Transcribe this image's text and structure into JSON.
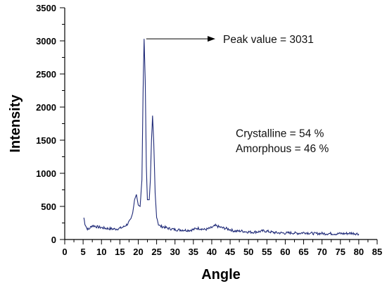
{
  "chart_data": {
    "type": "line",
    "title": "",
    "xlabel": "Angle",
    "ylabel": "Intensity",
    "xlim": [
      0,
      85
    ],
    "ylim": [
      0,
      3500
    ],
    "x_ticks": [
      0,
      5,
      10,
      15,
      20,
      25,
      30,
      35,
      40,
      45,
      50,
      55,
      60,
      65,
      70,
      75,
      80,
      85
    ],
    "y_ticks": [
      0,
      500,
      1000,
      1500,
      2000,
      2500,
      3000,
      3500
    ],
    "grid": false,
    "line_color": "#1f2a78",
    "series": [
      {
        "name": "",
        "points": [
          [
            5.2,
            330
          ],
          [
            5.5,
            240
          ],
          [
            6.0,
            170
          ],
          [
            6.5,
            150
          ],
          [
            7.0,
            185
          ],
          [
            7.5,
            210
          ],
          [
            8.0,
            205
          ],
          [
            9.0,
            190
          ],
          [
            10.0,
            180
          ],
          [
            11.0,
            170
          ],
          [
            12.0,
            165
          ],
          [
            13.0,
            160
          ],
          [
            14.0,
            158
          ],
          [
            15.0,
            170
          ],
          [
            16.0,
            190
          ],
          [
            17.0,
            230
          ],
          [
            18.0,
            300
          ],
          [
            18.5,
            400
          ],
          [
            19.0,
            600
          ],
          [
            19.5,
            680
          ],
          [
            20.0,
            520
          ],
          [
            20.5,
            500
          ],
          [
            21.0,
            900
          ],
          [
            21.3,
            2200
          ],
          [
            21.6,
            3031
          ],
          [
            21.9,
            2400
          ],
          [
            22.2,
            1100
          ],
          [
            22.5,
            600
          ],
          [
            23.0,
            600
          ],
          [
            23.3,
            900
          ],
          [
            23.6,
            1500
          ],
          [
            23.9,
            1870
          ],
          [
            24.2,
            1500
          ],
          [
            24.6,
            700
          ],
          [
            25.0,
            350
          ],
          [
            25.5,
            230
          ],
          [
            26.0,
            200
          ],
          [
            27.0,
            190
          ],
          [
            28.0,
            170
          ],
          [
            29.0,
            160
          ],
          [
            30.0,
            150
          ],
          [
            31.0,
            145
          ],
          [
            32.0,
            145
          ],
          [
            33.0,
            140
          ],
          [
            34.0,
            140
          ],
          [
            35.0,
            150
          ],
          [
            36.0,
            170
          ],
          [
            37.0,
            165
          ],
          [
            38.0,
            150
          ],
          [
            39.0,
            160
          ],
          [
            40.0,
            180
          ],
          [
            41.0,
            210
          ],
          [
            42.0,
            190
          ],
          [
            43.0,
            175
          ],
          [
            44.0,
            165
          ],
          [
            45.0,
            150
          ],
          [
            46.0,
            130
          ],
          [
            47.0,
            125
          ],
          [
            48.0,
            130
          ],
          [
            49.0,
            120
          ],
          [
            50.0,
            115
          ],
          [
            51.0,
            110
          ],
          [
            52.0,
            115
          ],
          [
            53.0,
            120
          ],
          [
            54.0,
            130
          ],
          [
            55.0,
            125
          ],
          [
            56.0,
            115
          ],
          [
            57.0,
            105
          ],
          [
            58.0,
            100
          ],
          [
            59.0,
            100
          ],
          [
            60.0,
            95
          ],
          [
            61.0,
            100
          ],
          [
            62.0,
            100
          ],
          [
            63.0,
            95
          ],
          [
            64.0,
            95
          ],
          [
            65.0,
            105
          ],
          [
            66.0,
            100
          ],
          [
            67.0,
            95
          ],
          [
            68.0,
            90
          ],
          [
            69.0,
            90
          ],
          [
            70.0,
            92
          ],
          [
            71.0,
            88
          ],
          [
            72.0,
            90
          ],
          [
            73.0,
            88
          ],
          [
            74.0,
            85
          ],
          [
            75.0,
            90
          ],
          [
            76.0,
            88
          ],
          [
            77.0,
            92
          ],
          [
            78.0,
            95
          ],
          [
            79.0,
            90
          ],
          [
            80.0,
            85
          ]
        ]
      }
    ],
    "annotations": {
      "peak_label": "Peak value = 3031",
      "peak_x": 21.6,
      "peak_y": 3031,
      "crystalline": "Crystalline = 54 %",
      "amorphous": "Amorphous = 46 %"
    }
  }
}
